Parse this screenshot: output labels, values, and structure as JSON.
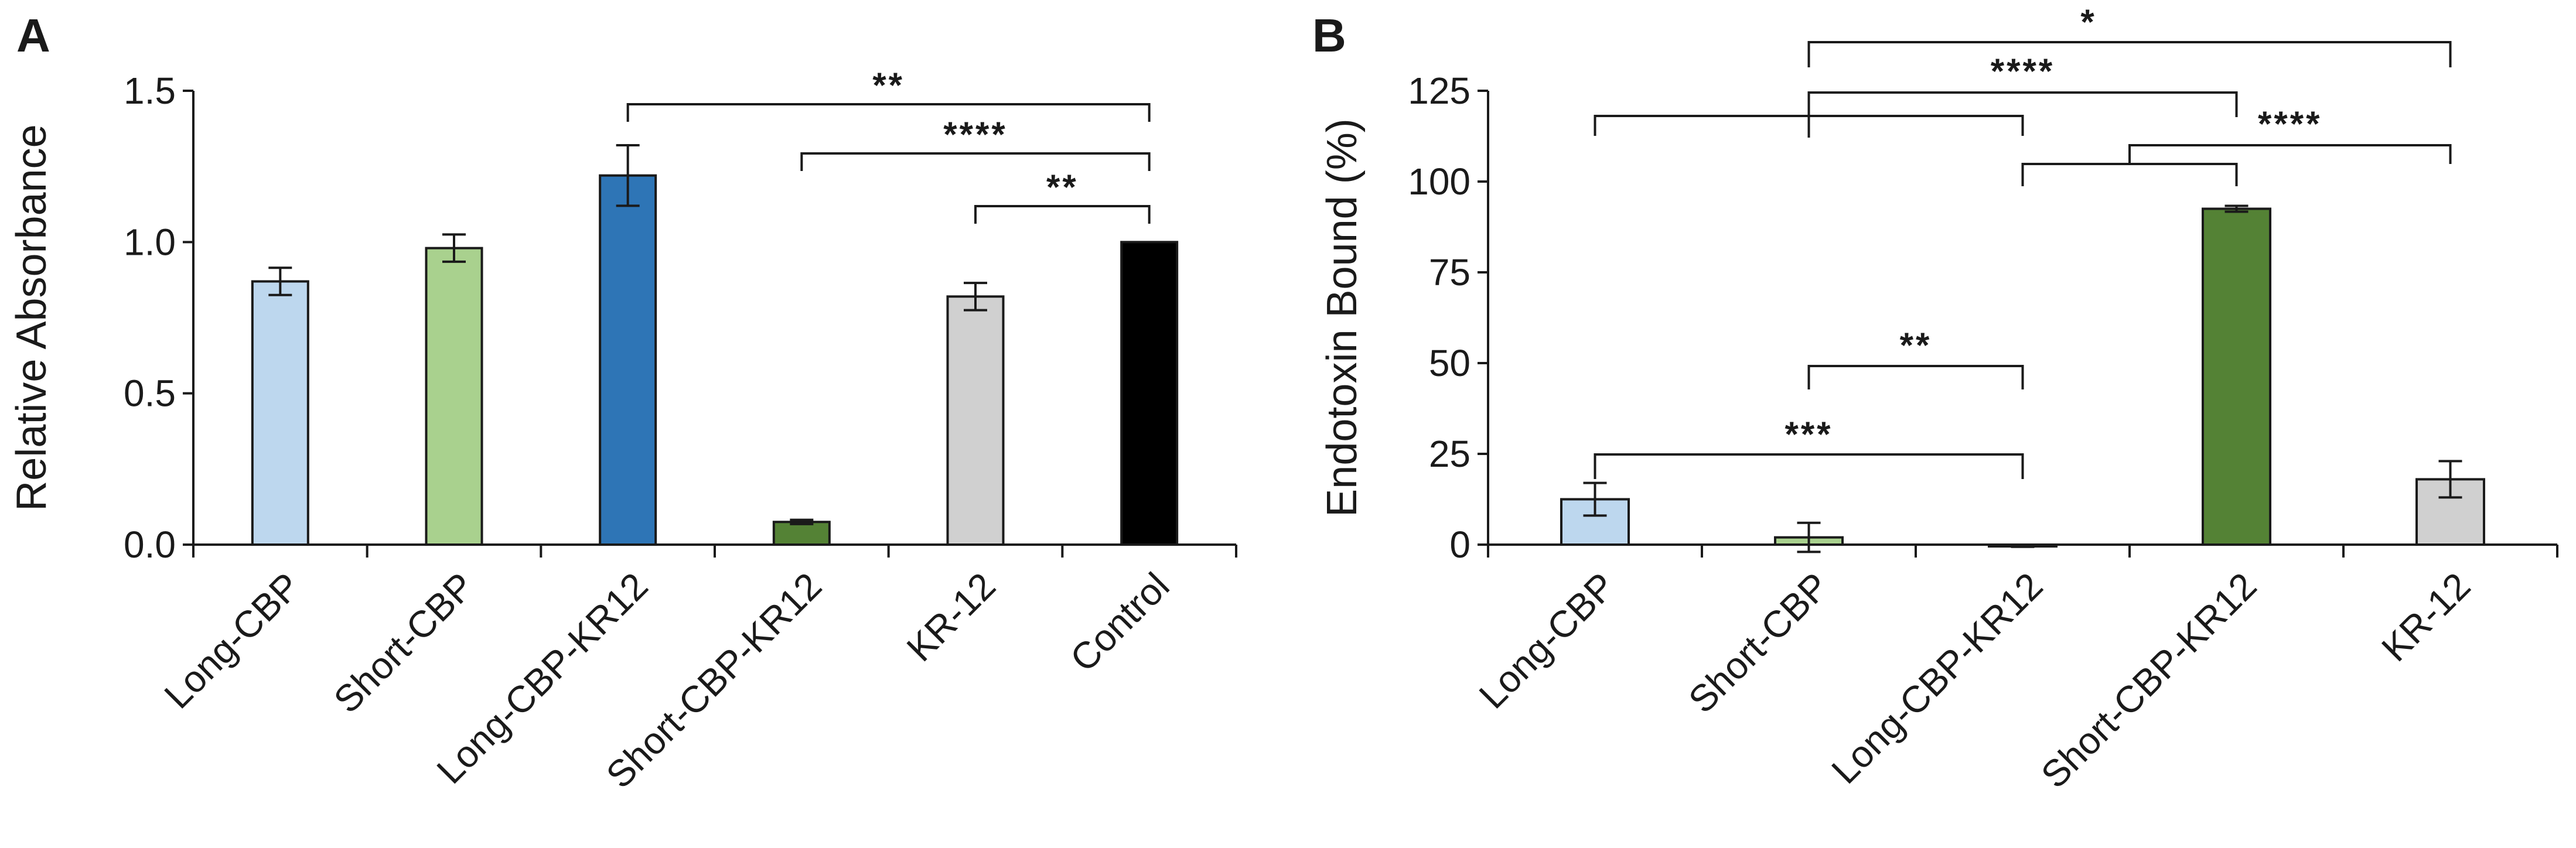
{
  "chart_data": [
    {
      "type": "bar",
      "panel": "A",
      "ylabel": "Relative Absorbance",
      "xlabel": "",
      "ylim": [
        0,
        1.5
      ],
      "yticks": [
        "0.0",
        "0.5",
        "1.0",
        "1.5"
      ],
      "categories": [
        "Long-CBP",
        "Short-CBP",
        "Long-CBP-KR12",
        "Short-CBP-KR12",
        "KR-12",
        "Control"
      ],
      "values": [
        0.87,
        0.98,
        1.22,
        0.075,
        0.82,
        1.0
      ],
      "errors": [
        0.045,
        0.045,
        0.1,
        0.007,
        0.045,
        0.0
      ],
      "colors": [
        "#bdd7ee",
        "#a9d18e",
        "#2e75b6",
        "#548235",
        "#d0d0d0",
        "#000000"
      ],
      "significance": [
        {
          "label": "**",
          "from": 2,
          "to": 5
        },
        {
          "label": "****",
          "from": 3,
          "to": 5
        },
        {
          "label": "**",
          "from": 4,
          "to": 5
        }
      ]
    },
    {
      "type": "bar",
      "panel": "B",
      "ylabel": "Endotoxin Bound (%)",
      "xlabel": "",
      "ylim": [
        0,
        125
      ],
      "yticks": [
        "0",
        "25",
        "50",
        "75",
        "100",
        "125"
      ],
      "categories": [
        "Long-CBP",
        "Short-CBP",
        "Long-CBP-KR12",
        "Short-CBP-KR12",
        "KR-12"
      ],
      "values": [
        12.5,
        2.0,
        -0.3,
        92.5,
        18.0
      ],
      "errors": [
        4.5,
        4.0,
        0.3,
        0.8,
        5.0
      ],
      "colors": [
        "#bdd7ee",
        "#a9d18e",
        "#2e75b6",
        "#548235",
        "#d0d0d0"
      ],
      "significance": [
        {
          "label": "*",
          "from": 1,
          "to": 4
        },
        {
          "label": "****",
          "from": 1,
          "to": 3
        },
        {
          "label": "",
          "from": 0,
          "to": 2
        },
        {
          "label": "****",
          "from": 2,
          "to": 4
        },
        {
          "label": "**",
          "from": 1,
          "to": 2
        },
        {
          "label": "***",
          "from": 0,
          "to": 2
        }
      ]
    }
  ]
}
